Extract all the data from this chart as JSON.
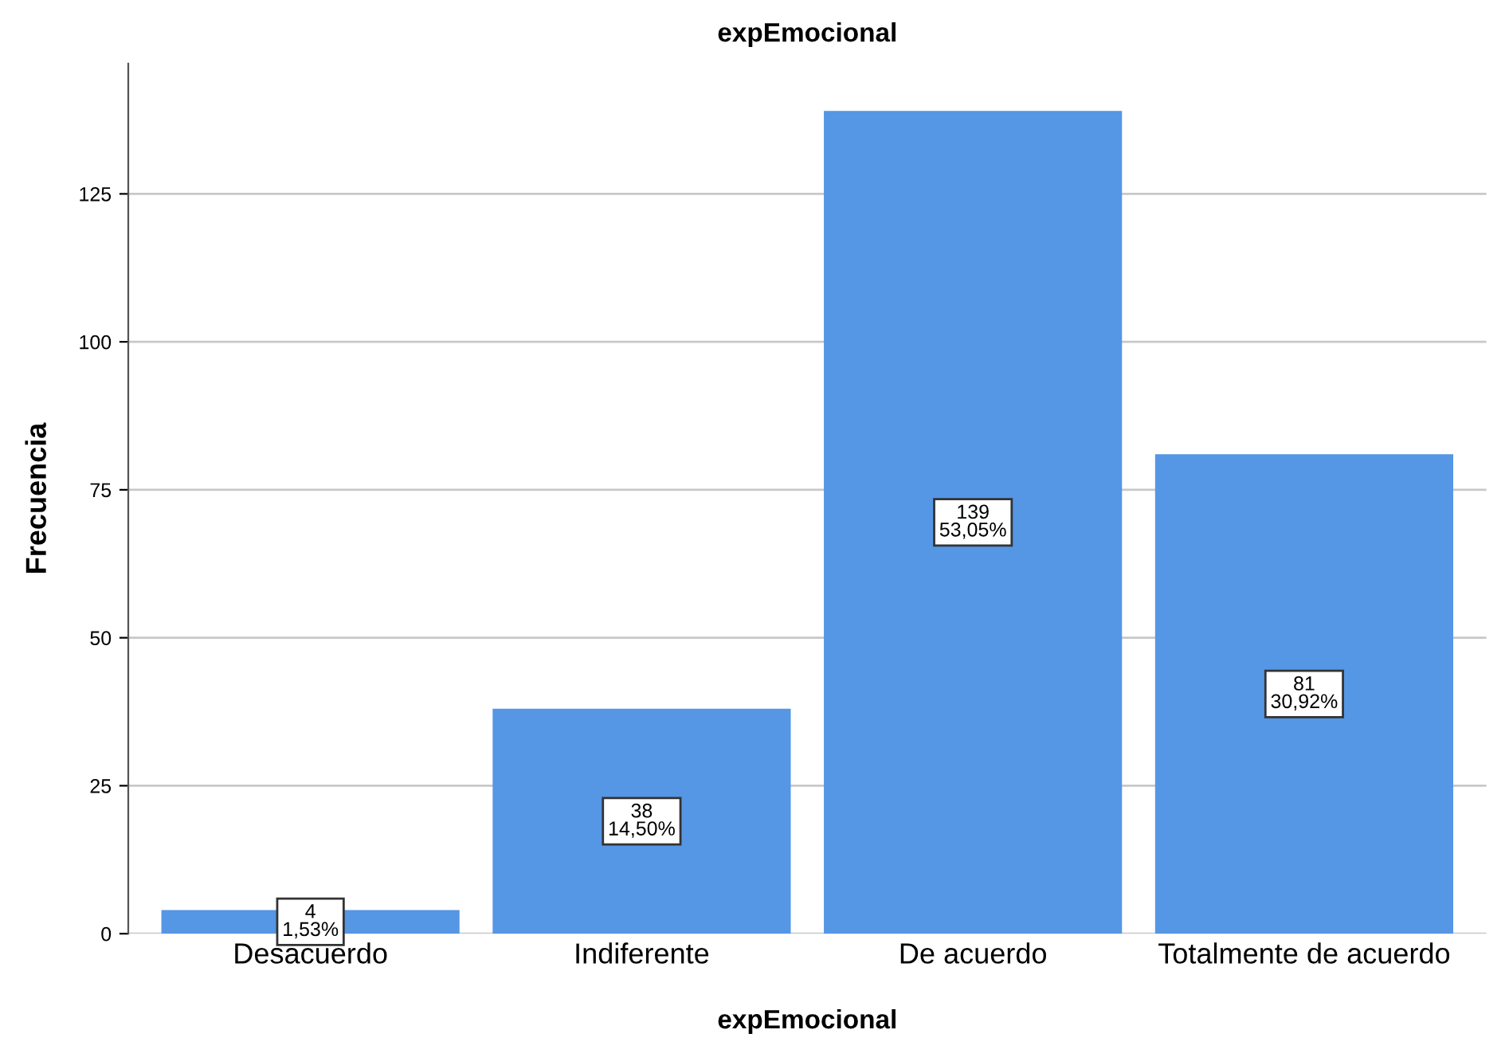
{
  "chart_data": {
    "type": "bar",
    "title": "expEmocional",
    "xlabel": "expEmocional",
    "ylabel": "Frecuencia",
    "categories": [
      "Desacuerdo",
      "Indiferente",
      "De acuerdo",
      "Totalmente de acuerdo"
    ],
    "values": [
      4,
      38,
      139,
      81
    ],
    "value_labels": [
      "4\n1,53%",
      "38\n14,50%",
      "139\n53,05%",
      "81\n30,92%"
    ],
    "color": "#5596e5",
    "ylim": [
      0,
      147
    ],
    "yticks": [
      0,
      25,
      50,
      75,
      100,
      125
    ],
    "grid": "y"
  }
}
